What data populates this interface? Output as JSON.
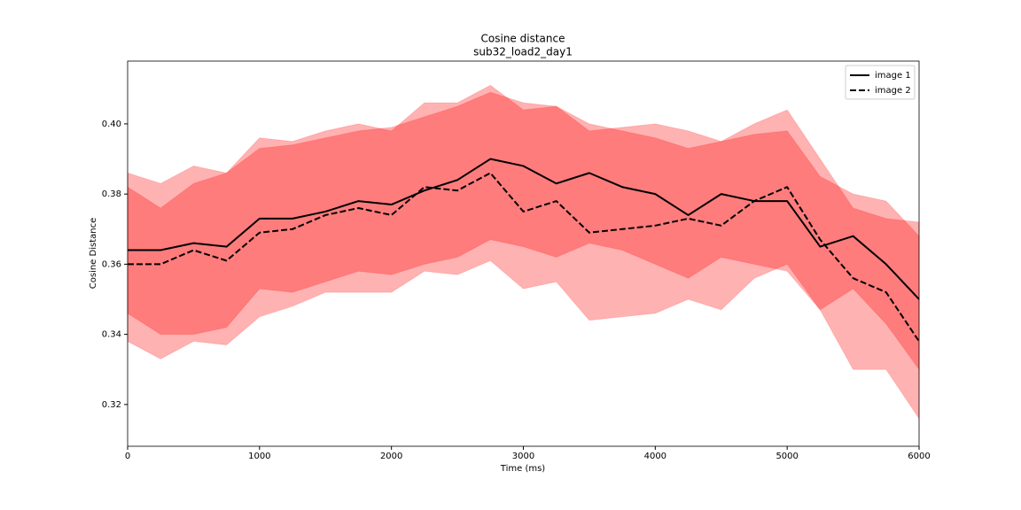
{
  "chart_data": {
    "type": "line",
    "title": "Cosine distance",
    "subtitle": "sub32_load2_day1",
    "x_label": "Time (ms)",
    "y_label": "Cosine Distance",
    "x": [
      0,
      250,
      500,
      750,
      1000,
      1250,
      1500,
      1750,
      2000,
      2250,
      2500,
      2750,
      3000,
      3250,
      3500,
      3750,
      4000,
      4250,
      4500,
      4750,
      5000,
      5250,
      5500,
      5750,
      6000
    ],
    "series": [
      {
        "name": "image 1",
        "color": "#000000",
        "linestyle": "solid",
        "band_color": "#ff0000",
        "values": [
          0.364,
          0.364,
          0.366,
          0.365,
          0.373,
          0.373,
          0.375,
          0.378,
          0.377,
          0.381,
          0.384,
          0.39,
          0.388,
          0.383,
          0.386,
          0.382,
          0.38,
          0.374,
          0.38,
          0.378,
          0.378,
          0.365,
          0.368,
          0.36,
          0.35
        ],
        "upper": [
          0.382,
          0.376,
          0.383,
          0.386,
          0.393,
          0.394,
          0.396,
          0.398,
          0.399,
          0.402,
          0.405,
          0.409,
          0.406,
          0.405,
          0.4,
          0.398,
          0.396,
          0.393,
          0.395,
          0.397,
          0.398,
          0.385,
          0.38,
          0.378,
          0.368
        ],
        "lower": [
          0.346,
          0.34,
          0.34,
          0.342,
          0.353,
          0.352,
          0.355,
          0.358,
          0.357,
          0.36,
          0.362,
          0.367,
          0.365,
          0.362,
          0.366,
          0.364,
          0.36,
          0.356,
          0.362,
          0.36,
          0.358,
          0.347,
          0.353,
          0.343,
          0.33
        ]
      },
      {
        "name": "image 2",
        "color": "#000000",
        "linestyle": "dashed",
        "band_color": "#ff0000",
        "values": [
          0.36,
          0.36,
          0.364,
          0.361,
          0.369,
          0.37,
          0.374,
          0.376,
          0.374,
          0.382,
          0.381,
          0.386,
          0.375,
          0.378,
          0.369,
          0.37,
          0.371,
          0.373,
          0.371,
          0.378,
          0.382,
          0.367,
          0.356,
          0.352,
          0.338
        ],
        "upper": [
          0.386,
          0.383,
          0.388,
          0.386,
          0.396,
          0.395,
          0.398,
          0.4,
          0.398,
          0.406,
          0.406,
          0.411,
          0.404,
          0.405,
          0.398,
          0.399,
          0.4,
          0.398,
          0.395,
          0.4,
          0.404,
          0.39,
          0.376,
          0.373,
          0.372
        ],
        "lower": [
          0.338,
          0.333,
          0.338,
          0.337,
          0.345,
          0.348,
          0.352,
          0.352,
          0.352,
          0.358,
          0.357,
          0.361,
          0.353,
          0.355,
          0.344,
          0.345,
          0.346,
          0.35,
          0.347,
          0.356,
          0.36,
          0.347,
          0.33,
          0.33,
          0.316
        ]
      }
    ],
    "xlim": [
      0,
      6000
    ],
    "xticks": [
      0,
      1000,
      2000,
      3000,
      4000,
      5000,
      6000
    ],
    "ylim": [
      0.3081,
      0.4179
    ],
    "yticks": [
      0.32,
      0.34,
      0.36,
      0.38,
      {
        "value": 0.4,
        "label": "0.40"
      }
    ],
    "legend": "upper right",
    "grid": false
  }
}
